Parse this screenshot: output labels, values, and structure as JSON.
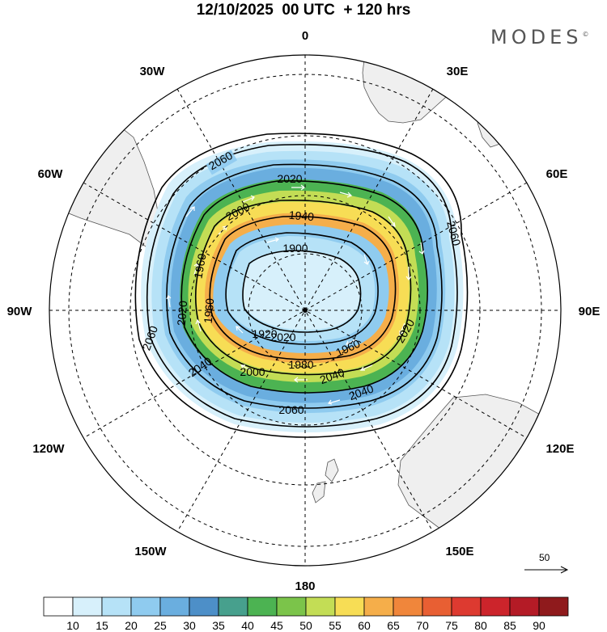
{
  "header": {
    "title": "12/10/2025  00 UTC  + 120 hrs",
    "brand": "MODES",
    "brand_mark": "©"
  },
  "map": {
    "projection": "south-polar-stereographic",
    "longitude_labels": {
      "top": "0",
      "top_left": "30W",
      "top_right": "30E",
      "upper_left": "60W",
      "upper_right": "60E",
      "left": "90W",
      "right": "90E",
      "lower_left": "120W",
      "lower_right": "120E",
      "bottom_left": "150W",
      "bottom_right": "150E",
      "bottom": "180"
    },
    "contour_labels": [
      "2060",
      "2020",
      "2000",
      "1940",
      "1900",
      "2060",
      "1960",
      "2020",
      "2040",
      "2060",
      "1960",
      "1920",
      "1980",
      "2000",
      "2040",
      "2060",
      "2020",
      "2020",
      "1960",
      "2040"
    ],
    "land_color": "#efefef",
    "contour_color": "#000000",
    "vector_color": "#ffffff"
  },
  "reference_vector": {
    "label": "50"
  },
  "colorbar": {
    "colors": [
      "#ffffff",
      "#d7f0fb",
      "#b6e2f7",
      "#8fcbef",
      "#6aaedf",
      "#4d8fc8",
      "#47a08d",
      "#4cb352",
      "#7bc44a",
      "#c3dd55",
      "#f7dd55",
      "#f5ae4a",
      "#f0863b",
      "#e85f33",
      "#dd3a30",
      "#cc242b",
      "#b41b26",
      "#8f1a1c"
    ],
    "labels": [
      "10",
      "15",
      "20",
      "25",
      "30",
      "35",
      "40",
      "45",
      "50",
      "55",
      "60",
      "65",
      "70",
      "75",
      "80",
      "85",
      "90"
    ]
  }
}
